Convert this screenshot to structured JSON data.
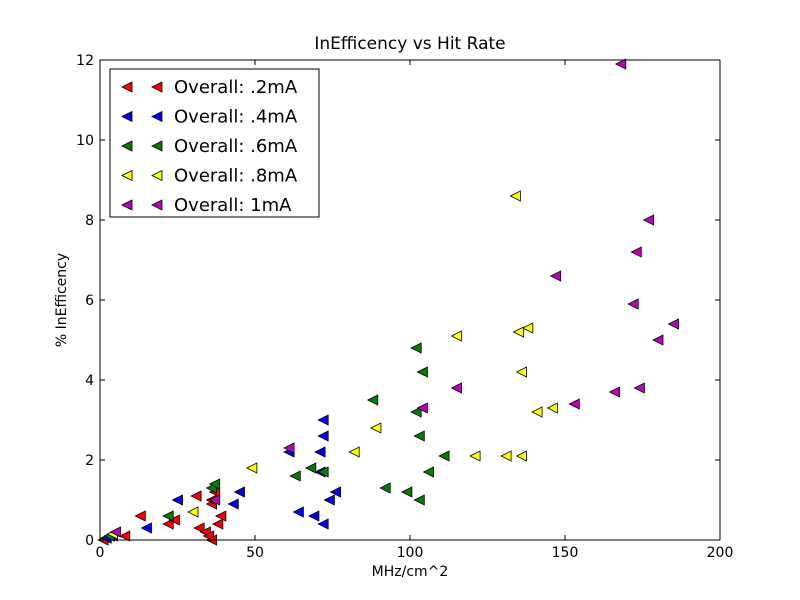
{
  "chart_data": {
    "type": "scatter",
    "title": "InEfficency vs Hit Rate",
    "xlabel": "MHz/cm^2",
    "ylabel": "% InEfficency",
    "xlim": [
      0,
      200
    ],
    "ylim": [
      0,
      12
    ],
    "xticks": [
      0,
      50,
      100,
      150,
      200
    ],
    "yticks": [
      0,
      2,
      4,
      6,
      8,
      10,
      12
    ],
    "marker": "triangle-left",
    "grid": false,
    "legend_position": "top-left",
    "series": [
      {
        "name": "Overall: .2mA",
        "color": "#ff0000",
        "points": [
          [
            1,
            0.0
          ],
          [
            2,
            0.05
          ],
          [
            3,
            0.1
          ],
          [
            8,
            0.1
          ],
          [
            13,
            0.6
          ],
          [
            22,
            0.4
          ],
          [
            24,
            0.5
          ],
          [
            31,
            1.1
          ],
          [
            32,
            0.3
          ],
          [
            34,
            0.2
          ],
          [
            35,
            0.1
          ],
          [
            36,
            0.0
          ],
          [
            36,
            0.9
          ],
          [
            36,
            1.0
          ],
          [
            37,
            1.2
          ],
          [
            38,
            0.4
          ],
          [
            39,
            0.6
          ]
        ]
      },
      {
        "name": "Overall: .4mA",
        "color": "#0000ff",
        "points": [
          [
            2,
            0.05
          ],
          [
            4,
            0.1
          ],
          [
            15,
            0.3
          ],
          [
            25,
            1.0
          ],
          [
            43,
            0.9
          ],
          [
            45,
            1.2
          ],
          [
            61,
            2.2
          ],
          [
            64,
            0.7
          ],
          [
            69,
            0.6
          ],
          [
            71,
            1.7
          ],
          [
            71,
            2.2
          ],
          [
            72,
            0.4
          ],
          [
            72,
            2.6
          ],
          [
            72,
            3.0
          ],
          [
            74,
            1.0
          ],
          [
            76,
            1.2
          ]
        ]
      },
      {
        "name": "Overall: .6mA",
        "color": "#008000",
        "points": [
          [
            3,
            0.1
          ],
          [
            22,
            0.6
          ],
          [
            36,
            1.3
          ],
          [
            37,
            1.4
          ],
          [
            63,
            1.6
          ],
          [
            68,
            1.8
          ],
          [
            72,
            1.7
          ],
          [
            88,
            3.5
          ],
          [
            92,
            1.3
          ],
          [
            99,
            1.2
          ],
          [
            102,
            3.2
          ],
          [
            102,
            4.8
          ],
          [
            103,
            1.0
          ],
          [
            103,
            2.6
          ],
          [
            104,
            4.2
          ],
          [
            106,
            1.7
          ],
          [
            111,
            2.1
          ]
        ]
      },
      {
        "name": "Overall: .8mA",
        "color": "#ffff00",
        "points": [
          [
            4,
            0.15
          ],
          [
            30,
            0.7
          ],
          [
            49,
            1.8
          ],
          [
            82,
            2.2
          ],
          [
            89,
            2.8
          ],
          [
            115,
            5.1
          ],
          [
            121,
            2.1
          ],
          [
            131,
            2.1
          ],
          [
            134,
            8.6
          ],
          [
            135,
            5.2
          ],
          [
            136,
            4.2
          ],
          [
            136,
            2.1
          ],
          [
            138,
            5.3
          ],
          [
            141,
            3.2
          ],
          [
            146,
            3.3
          ]
        ]
      },
      {
        "name": "Overall: 1mA",
        "color": "#bf00bf",
        "points": [
          [
            5,
            0.2
          ],
          [
            37,
            1.0
          ],
          [
            61,
            2.3
          ],
          [
            104,
            3.3
          ],
          [
            115,
            3.8
          ],
          [
            147,
            6.6
          ],
          [
            153,
            3.4
          ],
          [
            166,
            3.7
          ],
          [
            168,
            11.9
          ],
          [
            172,
            5.9
          ],
          [
            173,
            7.2
          ],
          [
            174,
            3.8
          ],
          [
            177,
            8.0
          ],
          [
            180,
            5.0
          ],
          [
            185,
            5.4
          ]
        ]
      }
    ]
  }
}
